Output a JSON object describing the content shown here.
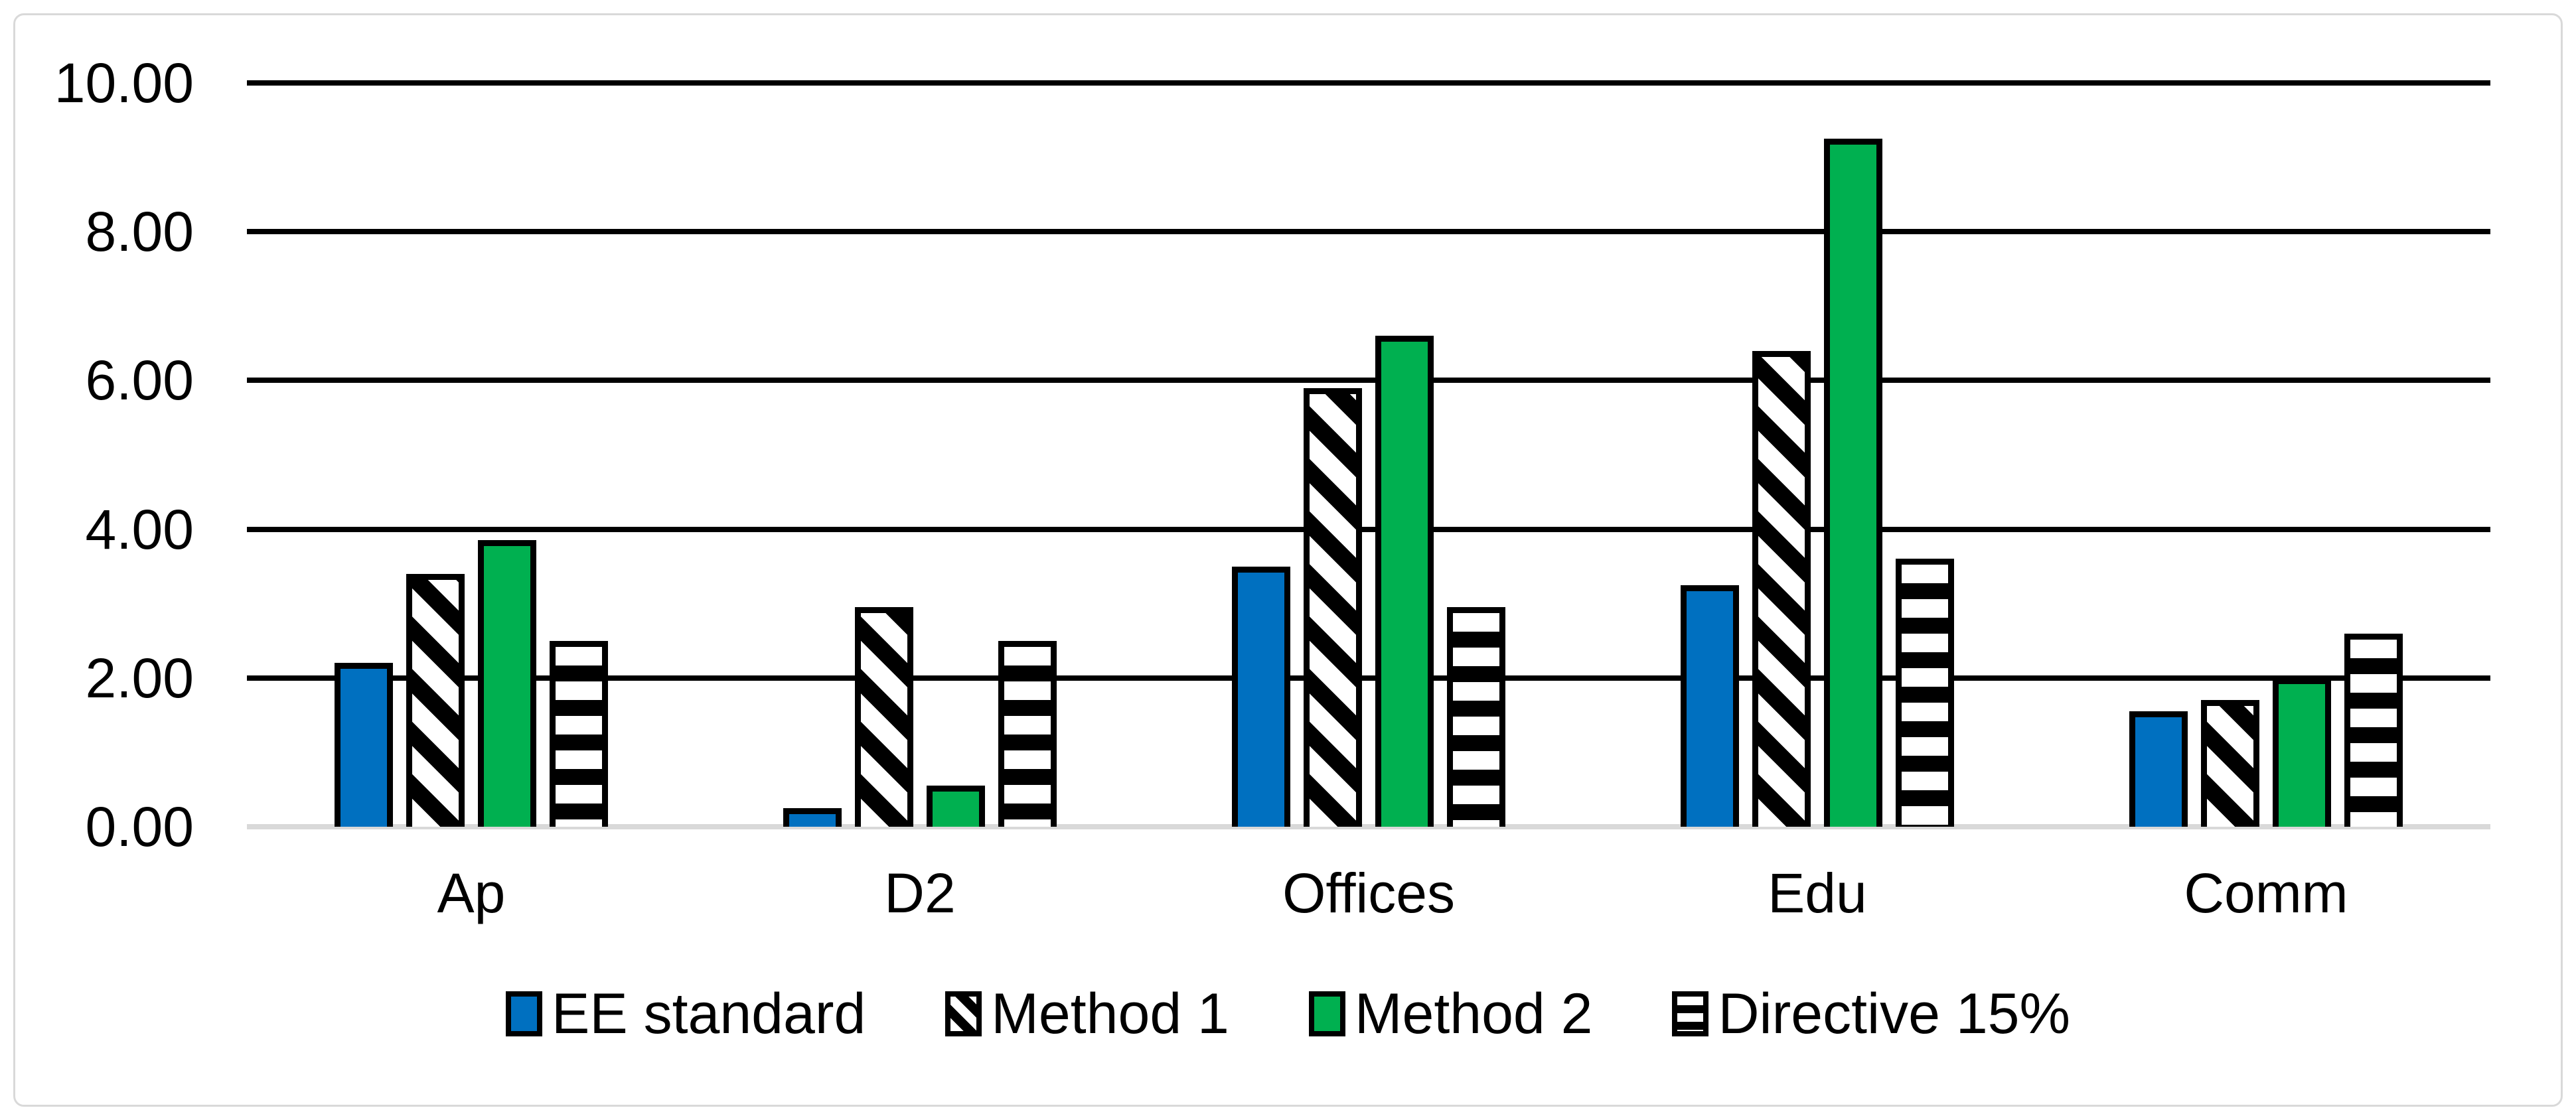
{
  "chart_data": {
    "type": "bar",
    "title": "",
    "xlabel": "",
    "ylabel": "",
    "categories": [
      "Ap",
      "D2",
      "Offices",
      "Edu",
      "Comm"
    ],
    "series": [
      {
        "name": "EE standard",
        "style": "solid-blue",
        "color": "#0070C0",
        "values": [
          2.2,
          0.25,
          3.5,
          3.25,
          1.55
        ]
      },
      {
        "name": "Method 1",
        "style": "diagonal-hatch",
        "color": "#000000",
        "values": [
          3.4,
          2.95,
          5.9,
          6.4,
          1.7
        ]
      },
      {
        "name": "Method 2",
        "style": "solid-green",
        "color": "#00B050",
        "values": [
          3.85,
          0.55,
          6.6,
          9.25,
          2.0
        ]
      },
      {
        "name": "Directive 15%",
        "style": "horizontal-hatch",
        "color": "#000000",
        "values": [
          2.5,
          2.5,
          2.95,
          3.6,
          2.6
        ]
      }
    ],
    "ylim": [
      0,
      10
    ],
    "y_tick_step": 2,
    "y_ticks": [
      "10.00",
      "8.00",
      "6.00",
      "4.00",
      "2.00",
      "0.00"
    ],
    "grid": true,
    "legend_position": "bottom"
  },
  "colors": {
    "series_blue": "#0070C0",
    "series_green": "#00B050",
    "hatch_black": "#000000",
    "gridline": "#000000",
    "axis_baseline": "#d9d9d9",
    "frame_border": "#d9d9d9",
    "text": "#000000",
    "background": "#ffffff"
  }
}
